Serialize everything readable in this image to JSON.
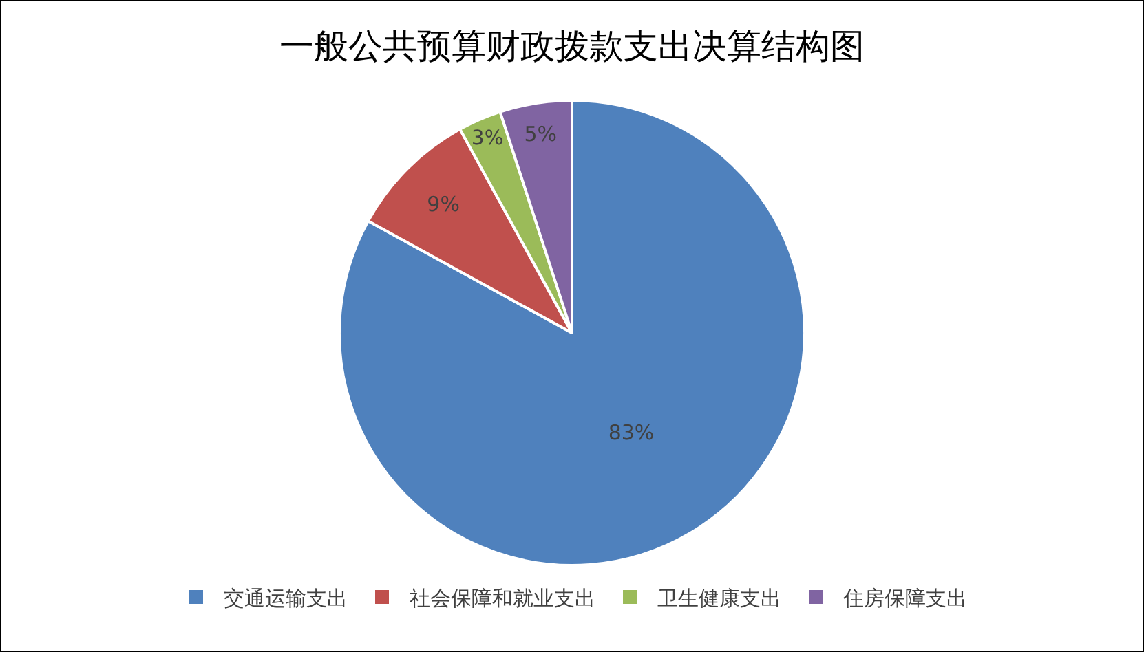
{
  "chart_data": {
    "type": "pie",
    "title": "一般公共预算财政拨款支出决算结构图",
    "categories": [
      "交通运输支出",
      "社会保障和就业支出",
      "卫生健康支出",
      "住房保障支出"
    ],
    "values": [
      83,
      9,
      3,
      5
    ],
    "colors": [
      "#4f81bd",
      "#c0504d",
      "#9bbb59",
      "#8064a2"
    ],
    "value_labels": [
      "83%",
      "9%",
      "3%",
      "5%"
    ],
    "legend": "bottom"
  }
}
